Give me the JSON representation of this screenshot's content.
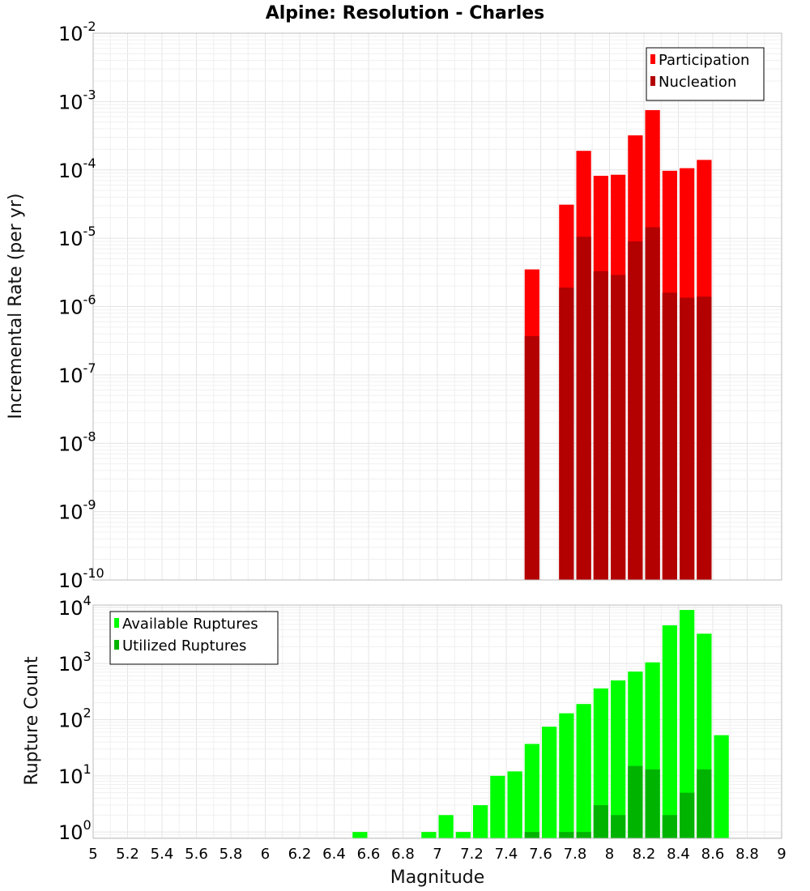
{
  "title": "Alpine: Resolution - Charles",
  "xlabel": "Magnitude",
  "chart_data": [
    {
      "type": "bar",
      "ylabel": "Incremental Rate (per yr)",
      "yscale": "log",
      "ylim": [
        1e-10,
        0.01
      ],
      "xlim": [
        5,
        9
      ],
      "bin_width": 0.1,
      "legend_placement": "top-right",
      "colors": {
        "Participation": "#ff0000",
        "Nucleation": "#b30000"
      },
      "series": [
        {
          "name": "Participation",
          "x": [
            7.55,
            7.75,
            7.85,
            7.95,
            8.05,
            8.15,
            8.25,
            8.35,
            8.45,
            8.55
          ],
          "values": [
            3.5e-06,
            3.1e-05,
            0.00019,
            8.2e-05,
            8.5e-05,
            0.00032,
            0.00075,
            9.7e-05,
            0.000106,
            0.00014
          ]
        },
        {
          "name": "Nucleation",
          "x": [
            7.55,
            7.75,
            7.85,
            7.95,
            8.05,
            8.15,
            8.25,
            8.35,
            8.45,
            8.55
          ],
          "values": [
            3.7e-07,
            1.9e-06,
            1.05e-05,
            3.3e-06,
            2.9e-06,
            9e-06,
            1.45e-05,
            1.6e-06,
            1.35e-06,
            1.4e-06
          ]
        }
      ]
    },
    {
      "type": "bar",
      "ylabel": "Rupture Count",
      "yscale": "log",
      "ylim": [
        0.77,
        11000
      ],
      "xlim": [
        5,
        9
      ],
      "bin_width": 0.1,
      "legend_placement": "top-left",
      "colors": {
        "Available Ruptures": "#00ff00",
        "Utilized Ruptures": "#00b300"
      },
      "series": [
        {
          "name": "Available Ruptures",
          "x": [
            6.55,
            6.95,
            7.05,
            7.15,
            7.25,
            7.35,
            7.45,
            7.55,
            7.65,
            7.75,
            7.85,
            7.95,
            8.05,
            8.15,
            8.25,
            8.35,
            8.45,
            8.55,
            8.65
          ],
          "values": [
            1,
            1,
            2,
            1,
            3,
            10,
            12,
            37,
            75,
            130,
            190,
            360,
            500,
            720,
            1050,
            4800,
            9000,
            3400,
            53
          ]
        },
        {
          "name": "Utilized Ruptures",
          "x": [
            7.55,
            7.75,
            7.85,
            7.95,
            8.05,
            8.15,
            8.25,
            8.35,
            8.45,
            8.55
          ],
          "values": [
            1,
            1,
            1,
            3,
            2,
            15,
            13,
            2,
            5,
            13
          ]
        }
      ]
    }
  ],
  "x_ticks": [
    "5",
    "5.2",
    "5.4",
    "5.6",
    "5.8",
    "6",
    "6.2",
    "6.4",
    "6.6",
    "6.8",
    "7",
    "7.2",
    "7.4",
    "7.6",
    "7.8",
    "8",
    "8.2",
    "8.4",
    "8.6",
    "8.8",
    "9"
  ],
  "top_y_ticks": [
    {
      "base": "10",
      "exp": "-10"
    },
    {
      "base": "10",
      "exp": "-9"
    },
    {
      "base": "10",
      "exp": "-8"
    },
    {
      "base": "10",
      "exp": "-7"
    },
    {
      "base": "10",
      "exp": "-6"
    },
    {
      "base": "10",
      "exp": "-5"
    },
    {
      "base": "10",
      "exp": "-4"
    },
    {
      "base": "10",
      "exp": "-3"
    },
    {
      "base": "10",
      "exp": "-2"
    }
  ],
  "bottom_y_ticks": [
    {
      "base": "10",
      "exp": "0"
    },
    {
      "base": "10",
      "exp": "1"
    },
    {
      "base": "10",
      "exp": "2"
    },
    {
      "base": "10",
      "exp": "3"
    },
    {
      "base": "10",
      "exp": "4"
    }
  ]
}
